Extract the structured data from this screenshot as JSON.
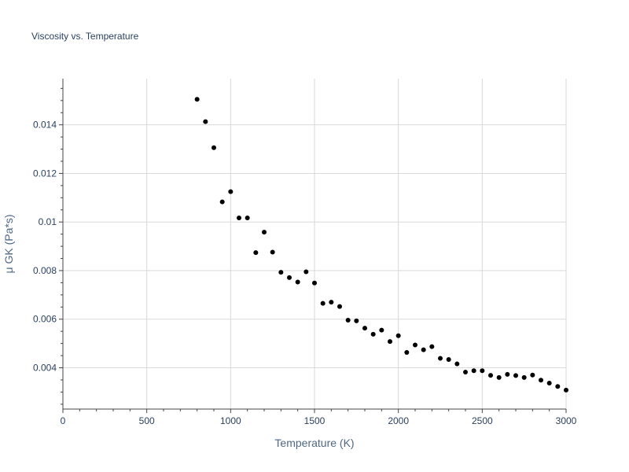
{
  "chart_data": {
    "type": "scatter",
    "title": "Viscosity vs. Temperature",
    "xlabel": "Temperature (K)",
    "ylabel": "μ GK (Pa*s)",
    "xlim": [
      0,
      3000
    ],
    "ylim": [
      0.0023,
      0.0159
    ],
    "xticks": [
      0,
      500,
      1000,
      1500,
      2000,
      2500,
      3000
    ],
    "xtick_labels": [
      "0",
      "500",
      "1000",
      "1500",
      "2000",
      "2500",
      "3000"
    ],
    "yticks": [
      0.004,
      0.006,
      0.008,
      0.01,
      0.012,
      0.014
    ],
    "ytick_labels": [
      "0.004",
      "0.006",
      "0.008",
      "0.01",
      "0.012",
      "0.014"
    ],
    "grid": true,
    "marker_color": "#000000",
    "points": [
      [
        800,
        0.01505
      ],
      [
        850,
        0.01413
      ],
      [
        900,
        0.01306
      ],
      [
        950,
        0.01083
      ],
      [
        1000,
        0.01125
      ],
      [
        1050,
        0.01017
      ],
      [
        1100,
        0.01017
      ],
      [
        1150,
        0.00874
      ],
      [
        1200,
        0.00958
      ],
      [
        1250,
        0.00876
      ],
      [
        1300,
        0.00793
      ],
      [
        1350,
        0.00771
      ],
      [
        1400,
        0.00753
      ],
      [
        1450,
        0.00795
      ],
      [
        1500,
        0.00749
      ],
      [
        1550,
        0.00665
      ],
      [
        1600,
        0.0067
      ],
      [
        1650,
        0.00652
      ],
      [
        1700,
        0.00596
      ],
      [
        1750,
        0.00593
      ],
      [
        1800,
        0.00563
      ],
      [
        1850,
        0.00538
      ],
      [
        1900,
        0.00555
      ],
      [
        1950,
        0.00508
      ],
      [
        2000,
        0.00532
      ],
      [
        2050,
        0.00463
      ],
      [
        2100,
        0.00494
      ],
      [
        2150,
        0.00474
      ],
      [
        2200,
        0.00487
      ],
      [
        2250,
        0.00439
      ],
      [
        2300,
        0.00434
      ],
      [
        2350,
        0.00416
      ],
      [
        2400,
        0.00382
      ],
      [
        2450,
        0.00388
      ],
      [
        2500,
        0.00388
      ],
      [
        2550,
        0.00369
      ],
      [
        2600,
        0.0036
      ],
      [
        2650,
        0.00373
      ],
      [
        2700,
        0.00368
      ],
      [
        2750,
        0.0036
      ],
      [
        2800,
        0.0037
      ],
      [
        2850,
        0.00349
      ],
      [
        2900,
        0.00337
      ],
      [
        2950,
        0.00323
      ],
      [
        3000,
        0.00308
      ]
    ]
  }
}
